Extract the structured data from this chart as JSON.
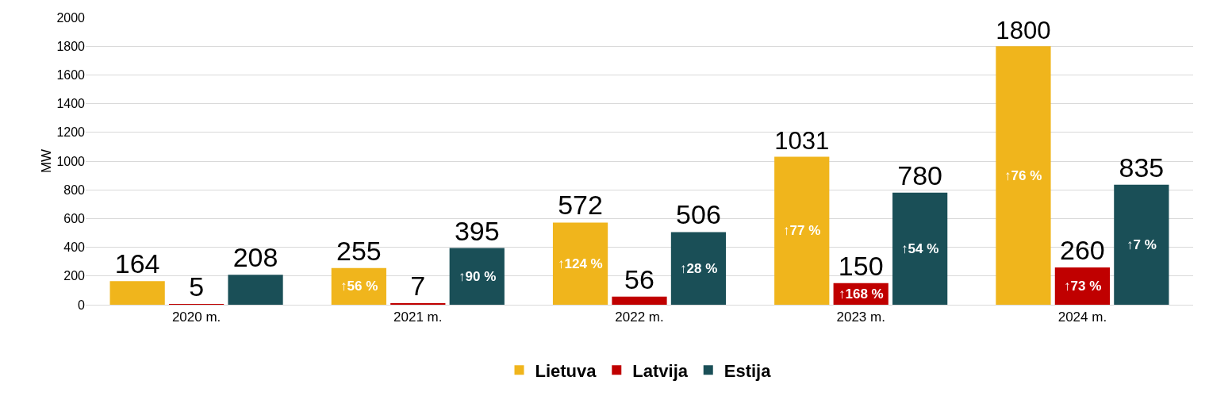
{
  "chart_data": {
    "type": "bar",
    "ylabel": "MW",
    "categories": [
      "2020 m.",
      "2021 m.",
      "2022 m.",
      "2023 m.",
      "2024 m."
    ],
    "series": [
      {
        "name": "Lietuva",
        "color": "#f0b51c",
        "values": [
          164,
          255,
          572,
          1031,
          1800
        ]
      },
      {
        "name": "Latvija",
        "color": "#c00000",
        "values": [
          5,
          7,
          56,
          150,
          260
        ]
      },
      {
        "name": "Estija",
        "color": "#1a4f57",
        "values": [
          208,
          395,
          506,
          780,
          835
        ]
      }
    ],
    "annotations": [
      "↑56 %",
      "↑124 %",
      "↑77 %",
      "↑76 %",
      "↑168 %",
      "↑73 %",
      "↑90 %",
      "↑28 %",
      "↑54 %",
      "↑7 %"
    ],
    "ylim": [
      0,
      2000
    ],
    "yticks": [
      0,
      200,
      400,
      600,
      800,
      1000,
      1200,
      1400,
      1600,
      1800,
      2000
    ],
    "grid": "y",
    "legend": "bottom",
    "data_labels": true
  }
}
